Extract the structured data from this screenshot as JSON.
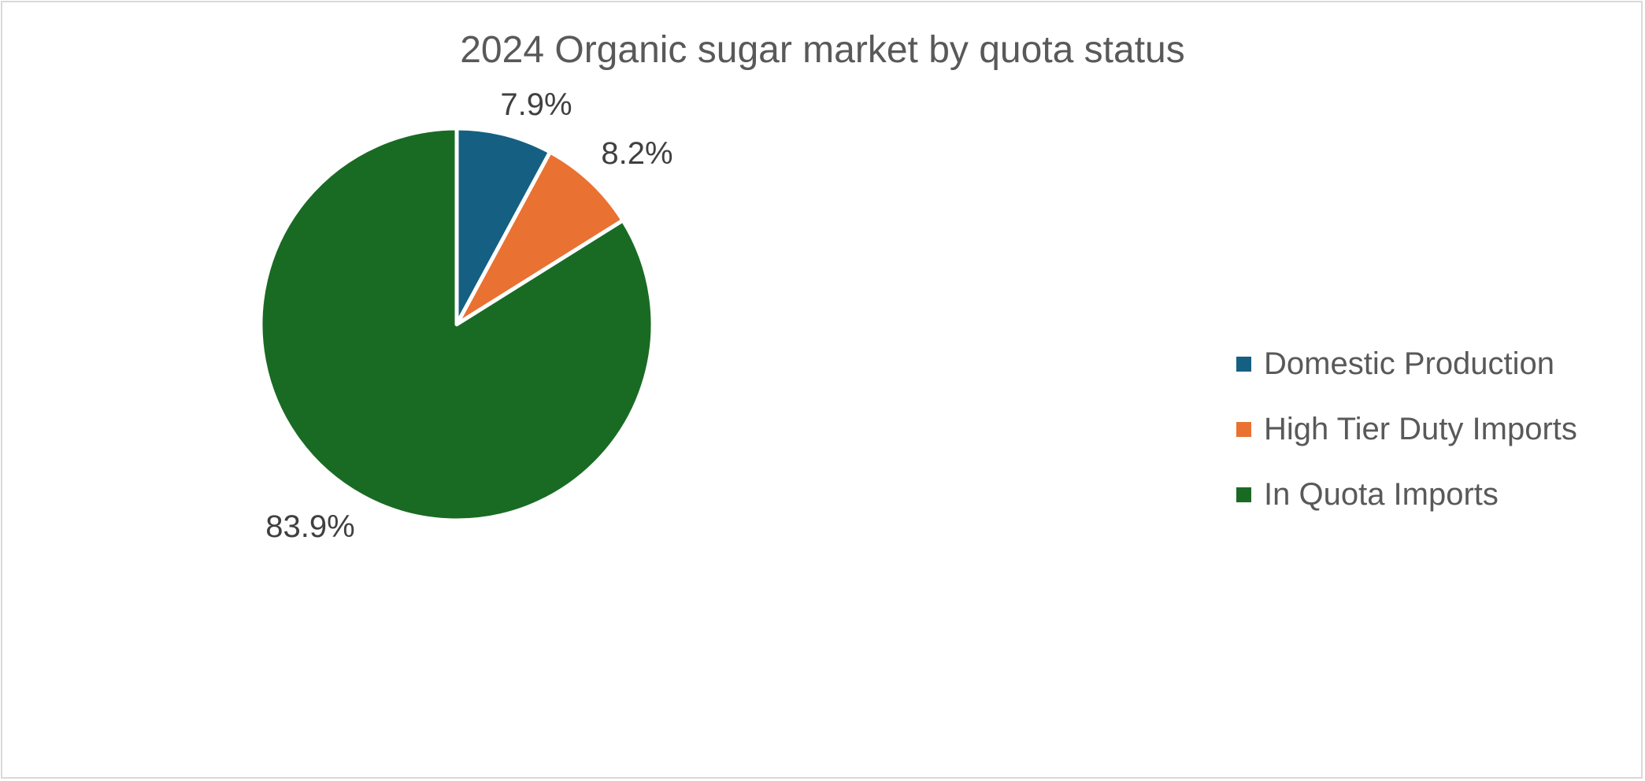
{
  "chart_data": {
    "type": "pie",
    "title": "2024 Organic sugar market by quota status",
    "categories": [
      "Domestic Production",
      "High Tier Duty Imports",
      "In Quota Imports"
    ],
    "values": [
      7.9,
      8.2,
      83.9
    ],
    "data_labels": [
      "7.9%",
      "8.2%",
      "83.9%"
    ],
    "colors": [
      "#156082",
      "#e97132",
      "#196b24"
    ],
    "legend_position": "right",
    "start_angle": "top",
    "direction": "clockwise"
  }
}
